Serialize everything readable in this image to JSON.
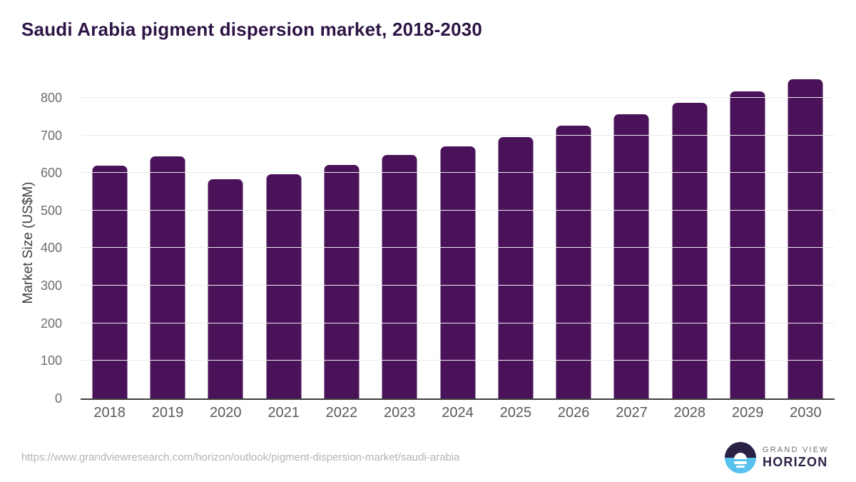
{
  "page": {
    "title": "Saudi Arabia pigment dispersion market, 2018-2030"
  },
  "footer": {
    "source_url": "https://www.grandviewresearch.com/horizon/outlook/pigment-dispersion-market/saudi-arabia",
    "logo": {
      "mark": "horizon-sun-icon",
      "line1": "GRAND VIEW",
      "line2": "HORIZON"
    }
  },
  "colors": {
    "bar": "#4a1259",
    "title_text": "#2d1445",
    "gridline": "#ebebeb",
    "axis_line": "#3f3f3f",
    "y_tick_label": "#6d6d6d",
    "x_tick_label": "#58595b",
    "url_text": "#b4b4b4",
    "logo_dark_purple": "#2b2045",
    "logo_light_blue": "#57c2ee"
  },
  "chart_data": {
    "type": "bar",
    "title": "Saudi Arabia pigment dispersion market, 2018-2030",
    "categories": [
      "2018",
      "2019",
      "2020",
      "2021",
      "2022",
      "2023",
      "2024",
      "2025",
      "2026",
      "2027",
      "2028",
      "2029",
      "2030"
    ],
    "values": [
      619,
      644,
      583,
      596,
      622,
      647,
      671,
      696,
      725,
      756,
      786,
      816,
      849
    ],
    "xlabel": "",
    "ylabel": "Market Size (US$M)",
    "yticks": [
      0,
      100,
      200,
      300,
      400,
      500,
      600,
      700,
      800
    ],
    "ylim": [
      0,
      870
    ],
    "grid": "horizontal",
    "legend": "none",
    "bar_color": "#4a1259"
  }
}
